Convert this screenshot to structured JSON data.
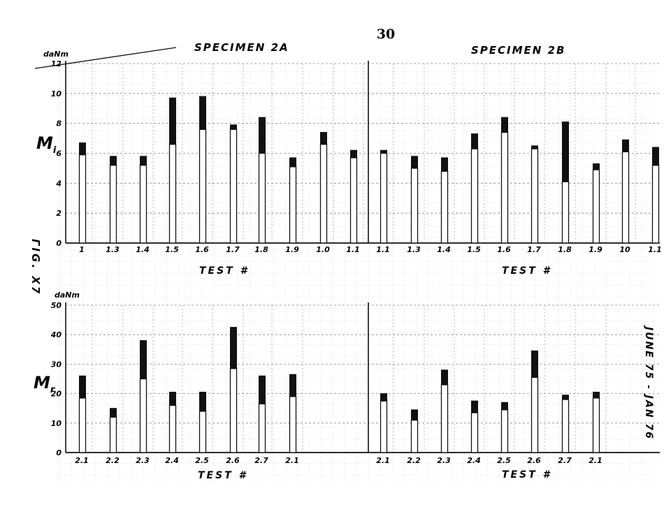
{
  "page_number": "30",
  "side_label": "ΓΙG. X7",
  "date_note": "JUNE 75 - JAN 76",
  "chart_data": [
    {
      "type": "bar",
      "stacked": true,
      "panel": "top",
      "symbol": "M",
      "symbol_sub": "i",
      "unit": "daNm",
      "ylim": [
        0,
        12
      ],
      "yticks": [
        "0",
        "2",
        "4",
        "6",
        "8",
        "10",
        "12"
      ],
      "xlabel": "TEST #",
      "groups": [
        {
          "title": "SPECIMEN 2A",
          "categories": [
            "1",
            "1.3",
            "1.4",
            "1.5",
            "1.6",
            "1.7",
            "1.8",
            "1.9",
            "1.0",
            "1.1"
          ],
          "series": [
            {
              "key": "base",
              "values": [
                5.9,
                5.2,
                5.2,
                6.6,
                7.6,
                7.6,
                6.0,
                5.1,
                6.6,
                5.7
              ]
            },
            {
              "key": "increment",
              "values": [
                0.8,
                0.6,
                0.6,
                3.1,
                2.2,
                0.3,
                2.4,
                0.6,
                0.8,
                0.5
              ]
            }
          ]
        },
        {
          "title": "SPECIMEN 2B",
          "categories": [
            "1.1",
            "1.3",
            "1.4",
            "1.5",
            "1.6",
            "1.7",
            "1.8",
            "1.9",
            "10",
            "1.1"
          ],
          "series": [
            {
              "key": "base",
              "values": [
                6.0,
                5.0,
                4.8,
                6.3,
                7.4,
                6.3,
                4.1,
                4.9,
                6.1,
                5.2
              ]
            },
            {
              "key": "increment",
              "values": [
                0.2,
                0.8,
                0.9,
                1.0,
                1.0,
                0.2,
                4.0,
                0.4,
                0.8,
                1.2
              ]
            }
          ]
        }
      ]
    },
    {
      "type": "bar",
      "stacked": true,
      "panel": "bottom",
      "symbol": "M",
      "symbol_sub": "r",
      "unit": "daNm",
      "ylim": [
        0,
        50
      ],
      "yticks": [
        "0",
        "10",
        "20",
        "30",
        "40",
        "50"
      ],
      "xlabel": "TEST #",
      "groups": [
        {
          "categories": [
            "2.1",
            "2.2",
            "2.3",
            "2.4",
            "2.5",
            "2.6",
            "2.7",
            "2.1"
          ],
          "series": [
            {
              "key": "base",
              "values": [
                18.5,
                12.0,
                25.0,
                16.0,
                14.0,
                28.5,
                16.5,
                19.0
              ]
            },
            {
              "key": "increment",
              "values": [
                7.5,
                3.0,
                13.0,
                4.5,
                6.5,
                14.0,
                9.5,
                7.5
              ]
            }
          ]
        },
        {
          "categories": [
            "2.1",
            "2.2",
            "2.3",
            "2.4",
            "2.5",
            "2.6",
            "2.7",
            "2.1"
          ],
          "series": [
            {
              "key": "base",
              "values": [
                17.5,
                11.0,
                23.0,
                13.5,
                14.5,
                25.5,
                18.0,
                18.5
              ]
            },
            {
              "key": "increment",
              "values": [
                2.5,
                3.5,
                5.0,
                4.0,
                2.5,
                9.0,
                1.5,
                2.0
              ]
            }
          ]
        }
      ]
    }
  ]
}
